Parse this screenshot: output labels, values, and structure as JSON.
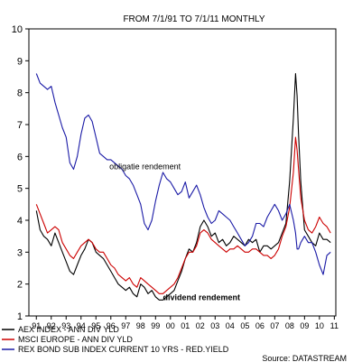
{
  "chart_data": {
    "type": "line",
    "title": "FROM 7/1/91 TO 7/1/11 MONTHLY",
    "ylim": [
      1,
      10
    ],
    "y_ticks": [
      1,
      2,
      3,
      4,
      5,
      6,
      7,
      8,
      9,
      10
    ],
    "x_tick_labels": [
      "91",
      "92",
      "93",
      "94",
      "95",
      "96",
      "97",
      "98",
      "99",
      "00",
      "01",
      "02",
      "03",
      "04",
      "05",
      "06",
      "07",
      "08",
      "09",
      "10",
      "11"
    ],
    "grid": false,
    "legend_position": "bottom",
    "source": "Source: DATASTREAM",
    "annotations": [
      {
        "text": "obligatie rendement",
        "x": 1996.4,
        "y": 5.6,
        "bold": false
      },
      {
        "text": "dividend rendement",
        "x": 2000.0,
        "y": 1.5,
        "bold": true
      }
    ],
    "series": [
      {
        "name": "AEX INDEX - ANN DIV YLD",
        "color": "#000000",
        "points": [
          [
            1991.5,
            4.3
          ],
          [
            1991.75,
            3.7
          ],
          [
            1992.0,
            3.5
          ],
          [
            1992.25,
            3.4
          ],
          [
            1992.5,
            3.2
          ],
          [
            1992.75,
            3.6
          ],
          [
            1993.0,
            3.3
          ],
          [
            1993.25,
            3.0
          ],
          [
            1993.5,
            2.7
          ],
          [
            1993.75,
            2.4
          ],
          [
            1994.0,
            2.3
          ],
          [
            1994.25,
            2.6
          ],
          [
            1994.5,
            2.9
          ],
          [
            1994.75,
            3.1
          ],
          [
            1995.0,
            3.4
          ],
          [
            1995.25,
            3.3
          ],
          [
            1995.5,
            3.0
          ],
          [
            1995.75,
            2.9
          ],
          [
            1996.0,
            2.8
          ],
          [
            1996.25,
            2.6
          ],
          [
            1996.5,
            2.4
          ],
          [
            1996.75,
            2.2
          ],
          [
            1997.0,
            2.0
          ],
          [
            1997.25,
            1.9
          ],
          [
            1997.5,
            1.8
          ],
          [
            1997.75,
            1.9
          ],
          [
            1998.0,
            1.7
          ],
          [
            1998.25,
            1.6
          ],
          [
            1998.5,
            2.0
          ],
          [
            1998.75,
            1.9
          ],
          [
            1999.0,
            1.7
          ],
          [
            1999.25,
            1.8
          ],
          [
            1999.5,
            1.6
          ],
          [
            1999.75,
            1.5
          ],
          [
            2000.0,
            1.5
          ],
          [
            2000.25,
            1.6
          ],
          [
            2000.5,
            1.7
          ],
          [
            2000.75,
            1.8
          ],
          [
            2001.0,
            2.1
          ],
          [
            2001.25,
            2.4
          ],
          [
            2001.5,
            2.8
          ],
          [
            2001.75,
            3.1
          ],
          [
            2002.0,
            3.0
          ],
          [
            2002.25,
            3.3
          ],
          [
            2002.5,
            3.8
          ],
          [
            2002.75,
            4.0
          ],
          [
            2003.0,
            3.8
          ],
          [
            2003.25,
            3.5
          ],
          [
            2003.5,
            3.6
          ],
          [
            2003.75,
            3.3
          ],
          [
            2004.0,
            3.4
          ],
          [
            2004.25,
            3.2
          ],
          [
            2004.5,
            3.3
          ],
          [
            2004.75,
            3.5
          ],
          [
            2005.0,
            3.4
          ],
          [
            2005.25,
            3.3
          ],
          [
            2005.5,
            3.2
          ],
          [
            2005.75,
            3.4
          ],
          [
            2006.0,
            3.3
          ],
          [
            2006.25,
            3.4
          ],
          [
            2006.5,
            3.0
          ],
          [
            2006.75,
            3.2
          ],
          [
            2007.0,
            3.2
          ],
          [
            2007.25,
            3.1
          ],
          [
            2007.5,
            3.2
          ],
          [
            2007.75,
            3.3
          ],
          [
            2008.0,
            3.6
          ],
          [
            2008.25,
            3.9
          ],
          [
            2008.5,
            5.2
          ],
          [
            2008.75,
            7.2
          ],
          [
            2008.9,
            8.6
          ],
          [
            2009.0,
            7.9
          ],
          [
            2009.1,
            6.7
          ],
          [
            2009.25,
            5.2
          ],
          [
            2009.5,
            3.7
          ],
          [
            2009.75,
            3.5
          ],
          [
            2010.0,
            3.3
          ],
          [
            2010.25,
            3.2
          ],
          [
            2010.5,
            3.6
          ],
          [
            2010.75,
            3.4
          ],
          [
            2011.0,
            3.4
          ],
          [
            2011.25,
            3.3
          ]
        ]
      },
      {
        "name": "MSCI EUROPE - ANN DIV YLD",
        "color": "#cc0000",
        "points": [
          [
            1991.5,
            4.5
          ],
          [
            1991.75,
            4.2
          ],
          [
            1992.0,
            3.9
          ],
          [
            1992.25,
            3.6
          ],
          [
            1992.5,
            3.7
          ],
          [
            1992.75,
            3.8
          ],
          [
            1993.0,
            3.7
          ],
          [
            1993.25,
            3.3
          ],
          [
            1993.5,
            3.1
          ],
          [
            1993.75,
            2.9
          ],
          [
            1994.0,
            2.8
          ],
          [
            1994.25,
            3.0
          ],
          [
            1994.5,
            3.2
          ],
          [
            1994.75,
            3.3
          ],
          [
            1995.0,
            3.4
          ],
          [
            1995.25,
            3.3
          ],
          [
            1995.5,
            3.1
          ],
          [
            1995.75,
            3.0
          ],
          [
            1996.0,
            3.0
          ],
          [
            1996.25,
            2.8
          ],
          [
            1996.5,
            2.6
          ],
          [
            1996.75,
            2.5
          ],
          [
            1997.0,
            2.3
          ],
          [
            1997.25,
            2.2
          ],
          [
            1997.5,
            2.1
          ],
          [
            1997.75,
            2.2
          ],
          [
            1998.0,
            2.0
          ],
          [
            1998.25,
            1.9
          ],
          [
            1998.5,
            2.2
          ],
          [
            1998.75,
            2.1
          ],
          [
            1999.0,
            2.0
          ],
          [
            1999.25,
            1.9
          ],
          [
            1999.5,
            1.8
          ],
          [
            1999.75,
            1.7
          ],
          [
            2000.0,
            1.7
          ],
          [
            2000.25,
            1.8
          ],
          [
            2000.5,
            1.9
          ],
          [
            2000.75,
            2.0
          ],
          [
            2001.0,
            2.2
          ],
          [
            2001.25,
            2.5
          ],
          [
            2001.5,
            2.8
          ],
          [
            2001.75,
            3.0
          ],
          [
            2002.0,
            3.0
          ],
          [
            2002.25,
            3.2
          ],
          [
            2002.5,
            3.6
          ],
          [
            2002.75,
            3.7
          ],
          [
            2003.0,
            3.6
          ],
          [
            2003.25,
            3.4
          ],
          [
            2003.5,
            3.3
          ],
          [
            2003.75,
            3.2
          ],
          [
            2004.0,
            3.1
          ],
          [
            2004.25,
            3.0
          ],
          [
            2004.5,
            3.1
          ],
          [
            2004.75,
            3.1
          ],
          [
            2005.0,
            3.2
          ],
          [
            2005.25,
            3.1
          ],
          [
            2005.5,
            3.0
          ],
          [
            2005.75,
            3.0
          ],
          [
            2006.0,
            3.1
          ],
          [
            2006.25,
            3.1
          ],
          [
            2006.5,
            3.0
          ],
          [
            2006.75,
            2.9
          ],
          [
            2007.0,
            2.9
          ],
          [
            2007.25,
            2.8
          ],
          [
            2007.5,
            2.9
          ],
          [
            2007.75,
            3.1
          ],
          [
            2008.0,
            3.5
          ],
          [
            2008.25,
            3.8
          ],
          [
            2008.5,
            4.4
          ],
          [
            2008.75,
            5.5
          ],
          [
            2008.9,
            6.6
          ],
          [
            2009.0,
            6.2
          ],
          [
            2009.1,
            5.6
          ],
          [
            2009.25,
            4.7
          ],
          [
            2009.5,
            4.0
          ],
          [
            2009.75,
            3.7
          ],
          [
            2010.0,
            3.6
          ],
          [
            2010.25,
            3.8
          ],
          [
            2010.5,
            4.1
          ],
          [
            2010.75,
            3.9
          ],
          [
            2011.0,
            3.8
          ],
          [
            2011.25,
            3.6
          ]
        ]
      },
      {
        "name": "REX BOND SUB INDEX CURRENT 10 YRS - RED.YIELD",
        "color": "#1a1aa6",
        "points": [
          [
            1991.5,
            8.6
          ],
          [
            1991.75,
            8.3
          ],
          [
            1992.0,
            8.2
          ],
          [
            1992.25,
            8.1
          ],
          [
            1992.5,
            8.2
          ],
          [
            1992.75,
            7.7
          ],
          [
            1993.0,
            7.3
          ],
          [
            1993.25,
            6.9
          ],
          [
            1993.5,
            6.6
          ],
          [
            1993.75,
            5.8
          ],
          [
            1994.0,
            5.6
          ],
          [
            1994.25,
            6.0
          ],
          [
            1994.5,
            6.7
          ],
          [
            1994.75,
            7.2
          ],
          [
            1995.0,
            7.3
          ],
          [
            1995.25,
            7.1
          ],
          [
            1995.5,
            6.6
          ],
          [
            1995.75,
            6.1
          ],
          [
            1996.0,
            6.0
          ],
          [
            1996.25,
            5.9
          ],
          [
            1996.5,
            5.9
          ],
          [
            1996.75,
            5.8
          ],
          [
            1997.0,
            5.7
          ],
          [
            1997.25,
            5.6
          ],
          [
            1997.5,
            5.4
          ],
          [
            1997.75,
            5.3
          ],
          [
            1998.0,
            5.1
          ],
          [
            1998.25,
            4.8
          ],
          [
            1998.5,
            4.5
          ],
          [
            1998.75,
            3.9
          ],
          [
            1999.0,
            3.7
          ],
          [
            1999.25,
            4.0
          ],
          [
            1999.5,
            4.6
          ],
          [
            1999.75,
            5.1
          ],
          [
            2000.0,
            5.5
          ],
          [
            2000.25,
            5.3
          ],
          [
            2000.5,
            5.2
          ],
          [
            2000.75,
            5.0
          ],
          [
            2001.0,
            4.8
          ],
          [
            2001.25,
            4.9
          ],
          [
            2001.5,
            5.2
          ],
          [
            2001.75,
            4.7
          ],
          [
            2002.0,
            4.9
          ],
          [
            2002.25,
            5.1
          ],
          [
            2002.5,
            4.8
          ],
          [
            2002.75,
            4.4
          ],
          [
            2003.0,
            4.1
          ],
          [
            2003.25,
            3.9
          ],
          [
            2003.5,
            4.0
          ],
          [
            2003.75,
            4.3
          ],
          [
            2004.0,
            4.2
          ],
          [
            2004.25,
            4.1
          ],
          [
            2004.5,
            4.0
          ],
          [
            2004.75,
            3.8
          ],
          [
            2005.0,
            3.6
          ],
          [
            2005.25,
            3.4
          ],
          [
            2005.5,
            3.2
          ],
          [
            2005.75,
            3.3
          ],
          [
            2006.0,
            3.5
          ],
          [
            2006.25,
            3.9
          ],
          [
            2006.5,
            3.9
          ],
          [
            2006.75,
            3.8
          ],
          [
            2007.0,
            4.1
          ],
          [
            2007.25,
            4.3
          ],
          [
            2007.5,
            4.5
          ],
          [
            2007.75,
            4.3
          ],
          [
            2008.0,
            4.0
          ],
          [
            2008.25,
            4.2
          ],
          [
            2008.5,
            4.5
          ],
          [
            2008.75,
            4.0
          ],
          [
            2008.9,
            3.6
          ],
          [
            2009.0,
            3.1
          ],
          [
            2009.1,
            3.1
          ],
          [
            2009.25,
            3.3
          ],
          [
            2009.5,
            3.5
          ],
          [
            2009.75,
            3.3
          ],
          [
            2010.0,
            3.3
          ],
          [
            2010.25,
            3.0
          ],
          [
            2010.5,
            2.6
          ],
          [
            2010.75,
            2.3
          ],
          [
            2011.0,
            2.9
          ],
          [
            2011.25,
            3.0
          ]
        ]
      }
    ]
  }
}
